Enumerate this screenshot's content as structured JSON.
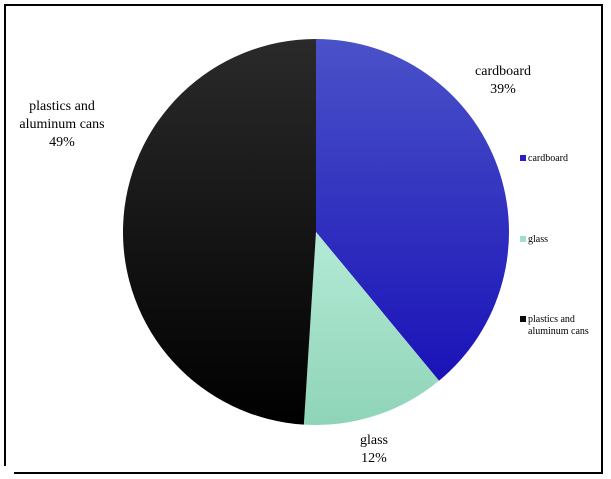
{
  "chart_data": {
    "type": "pie",
    "categories": [
      "cardboard",
      "glass",
      "plastics and aluminum cans"
    ],
    "values": [
      39,
      12,
      49
    ],
    "value_labels": [
      "39%",
      "12%",
      "49%"
    ],
    "colors": [
      "#2a1fc0",
      "#9fdfc4",
      "#0a0a0a"
    ],
    "legend": {
      "placement": "right",
      "entries": [
        "cardboard",
        "glass",
        "plastics and aluminum cans"
      ]
    },
    "slice_labels": [
      {
        "name_lines": [
          "cardboard"
        ],
        "pct": "39%"
      },
      {
        "name_lines": [
          "glass"
        ],
        "pct": "12%"
      },
      {
        "name_lines": [
          "plastics and",
          "aluminum cans"
        ],
        "pct": "49%"
      }
    ]
  }
}
